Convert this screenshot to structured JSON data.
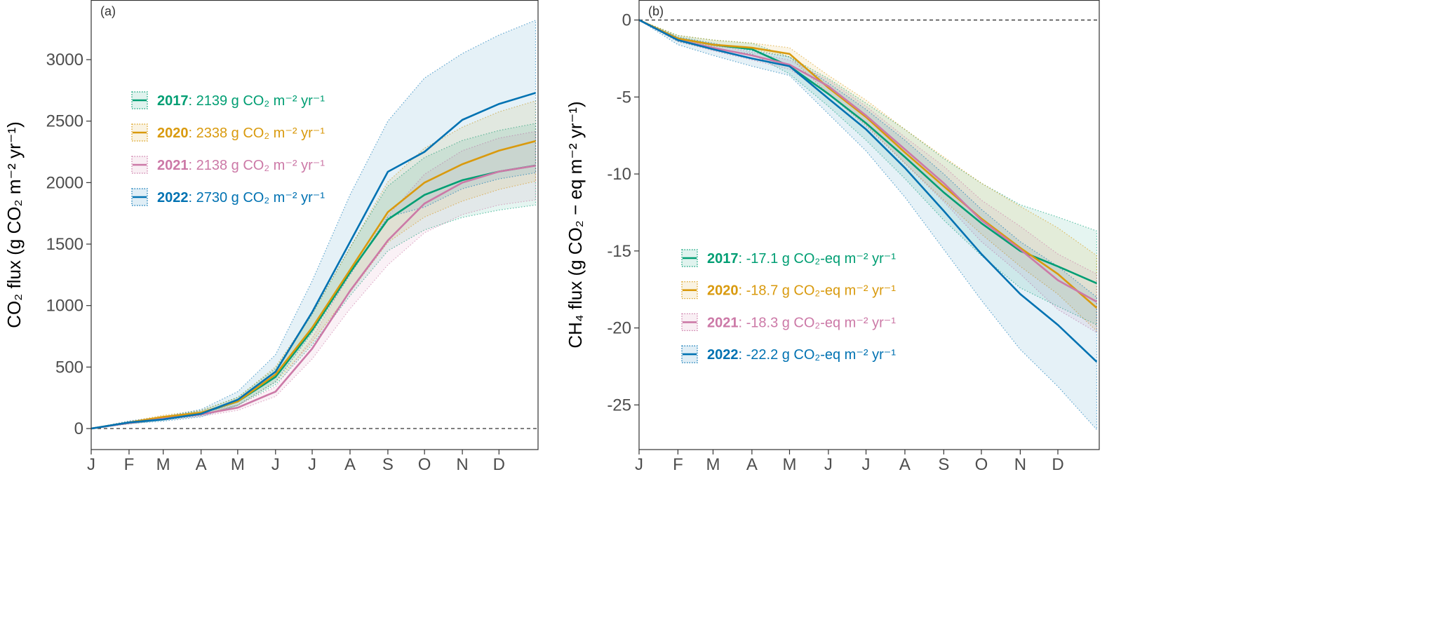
{
  "chart_data": [
    {
      "type": "line",
      "panel_label": "(a)",
      "y_label": "CO₂ flux (g CO₂ m⁻² yr⁻¹)",
      "x": [
        1,
        32,
        60,
        91,
        121,
        152,
        182,
        213,
        244,
        274,
        305,
        335,
        365
      ],
      "xlim": [
        1,
        367
      ],
      "xticks": [
        {
          "value": 1,
          "label": "J"
        },
        {
          "value": 32,
          "label": "F"
        },
        {
          "value": 60,
          "label": "M"
        },
        {
          "value": 91,
          "label": "A"
        },
        {
          "value": 121,
          "label": "M"
        },
        {
          "value": 152,
          "label": "J"
        },
        {
          "value": 182,
          "label": "J"
        },
        {
          "value": 213,
          "label": "A"
        },
        {
          "value": 244,
          "label": "S"
        },
        {
          "value": 274,
          "label": "O"
        },
        {
          "value": 305,
          "label": "N"
        },
        {
          "value": 335,
          "label": "D"
        }
      ],
      "ylim": [
        -171,
        3485
      ],
      "yticks": [
        0,
        500,
        1000,
        1500,
        2000,
        2500,
        3000
      ],
      "zero_line": true,
      "series": [
        {
          "name": "2017",
          "legend_text": ": 2139 g CO₂ m⁻² yr⁻¹",
          "color": "#009E73",
          "values": [
            0,
            45,
            80,
            125,
            220,
            420,
            800,
            1270,
            1700,
            1900,
            2020,
            2090,
            2139
          ],
          "upper": [
            0,
            52,
            93,
            145,
            255,
            487,
            928,
            1473,
            1972,
            2204,
            2343,
            2424,
            2481
          ],
          "lower": [
            0,
            38,
            68,
            106,
            187,
            357,
            680,
            1080,
            1445,
            1615,
            1717,
            1777,
            1818
          ]
        },
        {
          "name": "2020",
          "legend_text": ": 2338 g CO₂ m⁻² yr⁻¹",
          "color": "#D99A0E",
          "values": [
            0,
            50,
            95,
            130,
            220,
            440,
            820,
            1290,
            1760,
            2000,
            2150,
            2260,
            2338
          ],
          "upper": [
            0,
            57,
            108,
            148,
            251,
            502,
            935,
            1471,
            2006,
            2280,
            2451,
            2576,
            2665
          ],
          "lower": [
            0,
            43,
            82,
            112,
            189,
            378,
            705,
            1109,
            1514,
            1720,
            1849,
            1944,
            2011
          ]
        },
        {
          "name": "2021",
          "legend_text": ": 2138 g CO₂ m⁻² yr⁻¹",
          "color": "#CC79A7",
          "values": [
            0,
            45,
            80,
            115,
            170,
            300,
            650,
            1120,
            1530,
            1830,
            2000,
            2090,
            2138
          ],
          "upper": [
            0,
            51,
            90,
            130,
            192,
            339,
            735,
            1266,
            1729,
            2068,
            2260,
            2362,
            2416
          ],
          "lower": [
            0,
            39,
            70,
            100,
            148,
            261,
            566,
            974,
            1331,
            1592,
            1740,
            1818,
            1860
          ]
        },
        {
          "name": "2022",
          "legend_text": ": 2730 g CO₂ m⁻² yr⁻¹",
          "color": "#0072B2",
          "values": [
            0,
            50,
            74,
            120,
            234,
            462,
            947,
            1517,
            2088,
            2250,
            2510,
            2640,
            2730
          ],
          "upper": [
            0,
            62,
            95,
            155,
            300,
            600,
            1200,
            1900,
            2500,
            2850,
            3050,
            3200,
            3320
          ],
          "lower": [
            0,
            40,
            60,
            95,
            190,
            380,
            780,
            1250,
            1720,
            1800,
            1950,
            2030,
            2080
          ]
        }
      ]
    },
    {
      "type": "line",
      "panel_label": "(b)",
      "y_label": "CH₄ flux (g CO₂ − eq m⁻² yr⁻¹)",
      "x": [
        1,
        32,
        60,
        91,
        121,
        152,
        182,
        213,
        244,
        274,
        305,
        335,
        366
      ],
      "xlim": [
        1,
        368
      ],
      "xticks": [
        {
          "value": 1,
          "label": "J"
        },
        {
          "value": 32,
          "label": "F"
        },
        {
          "value": 60,
          "label": "M"
        },
        {
          "value": 91,
          "label": "A"
        },
        {
          "value": 121,
          "label": "M"
        },
        {
          "value": 152,
          "label": "J"
        },
        {
          "value": 182,
          "label": "J"
        },
        {
          "value": 213,
          "label": "A"
        },
        {
          "value": 244,
          "label": "S"
        },
        {
          "value": 274,
          "label": "O"
        },
        {
          "value": 305,
          "label": "N"
        },
        {
          "value": 335,
          "label": "D"
        }
      ],
      "ylim": [
        -27.9,
        1.3
      ],
      "yticks": [
        0,
        -5,
        -10,
        -15,
        -20,
        -25
      ],
      "zero_line": true,
      "series": [
        {
          "name": "2017",
          "legend_text": ": -17.1 g CO₂-eq m⁻² yr⁻¹",
          "color": "#009E73",
          "values": [
            0,
            -1.2,
            -1.6,
            -1.9,
            -3.0,
            -4.8,
            -6.7,
            -8.9,
            -11.2,
            -13.2,
            -15.0,
            -16.0,
            -17.1
          ],
          "upper": [
            0,
            -1.0,
            -1.3,
            -1.5,
            -2.4,
            -3.8,
            -5.4,
            -7.1,
            -9.0,
            -10.6,
            -12.0,
            -12.8,
            -13.7
          ],
          "lower": [
            0,
            -1.4,
            -1.9,
            -2.2,
            -3.5,
            -5.6,
            -7.8,
            -10.3,
            -13.0,
            -15.3,
            -17.4,
            -18.6,
            -19.8
          ]
        },
        {
          "name": "2020",
          "legend_text": ": -18.7 g CO₂-eq m⁻² yr⁻¹",
          "color": "#D99A0E",
          "values": [
            0,
            -1.2,
            -1.6,
            -1.8,
            -2.2,
            -4.4,
            -6.3,
            -8.6,
            -10.8,
            -12.9,
            -14.8,
            -16.5,
            -18.7
          ],
          "upper": [
            0,
            -1.0,
            -1.3,
            -1.5,
            -1.8,
            -3.6,
            -5.2,
            -7.1,
            -8.9,
            -10.6,
            -12.1,
            -13.5,
            -15.3
          ],
          "lower": [
            0,
            -1.3,
            -1.7,
            -1.9,
            -2.4,
            -4.8,
            -6.8,
            -9.3,
            -11.7,
            -13.9,
            -16.0,
            -17.8,
            -20.2
          ]
        },
        {
          "name": "2021",
          "legend_text": ": -18.3 g CO₂-eq m⁻² yr⁻¹",
          "color": "#CC79A7",
          "values": [
            0,
            -1.3,
            -1.8,
            -2.3,
            -2.9,
            -4.3,
            -6.2,
            -8.4,
            -10.6,
            -13.0,
            -14.9,
            -16.9,
            -18.3
          ],
          "upper": [
            0,
            -1.2,
            -1.6,
            -2.1,
            -2.6,
            -3.9,
            -5.6,
            -7.6,
            -9.5,
            -11.7,
            -13.4,
            -15.2,
            -16.5
          ],
          "lower": [
            0,
            -1.4,
            -2.0,
            -2.6,
            -3.2,
            -4.8,
            -6.9,
            -9.3,
            -11.8,
            -14.4,
            -16.5,
            -18.8,
            -20.3
          ]
        },
        {
          "name": "2022",
          "legend_text": ": -22.2 g CO₂-eq m⁻² yr⁻¹",
          "color": "#0072B2",
          "values": [
            0,
            -1.3,
            -1.9,
            -2.5,
            -3.0,
            -5.1,
            -7.1,
            -9.6,
            -12.4,
            -15.2,
            -17.8,
            -19.8,
            -22.2
          ],
          "upper": [
            0,
            -1.1,
            -1.5,
            -2.0,
            -2.4,
            -4.1,
            -5.8,
            -7.8,
            -10.0,
            -12.3,
            -14.4,
            -16.0,
            -18.0
          ],
          "lower": [
            0,
            -1.6,
            -2.3,
            -3.0,
            -3.6,
            -6.1,
            -8.5,
            -11.5,
            -14.9,
            -18.2,
            -21.4,
            -23.8,
            -26.6
          ]
        }
      ]
    }
  ]
}
